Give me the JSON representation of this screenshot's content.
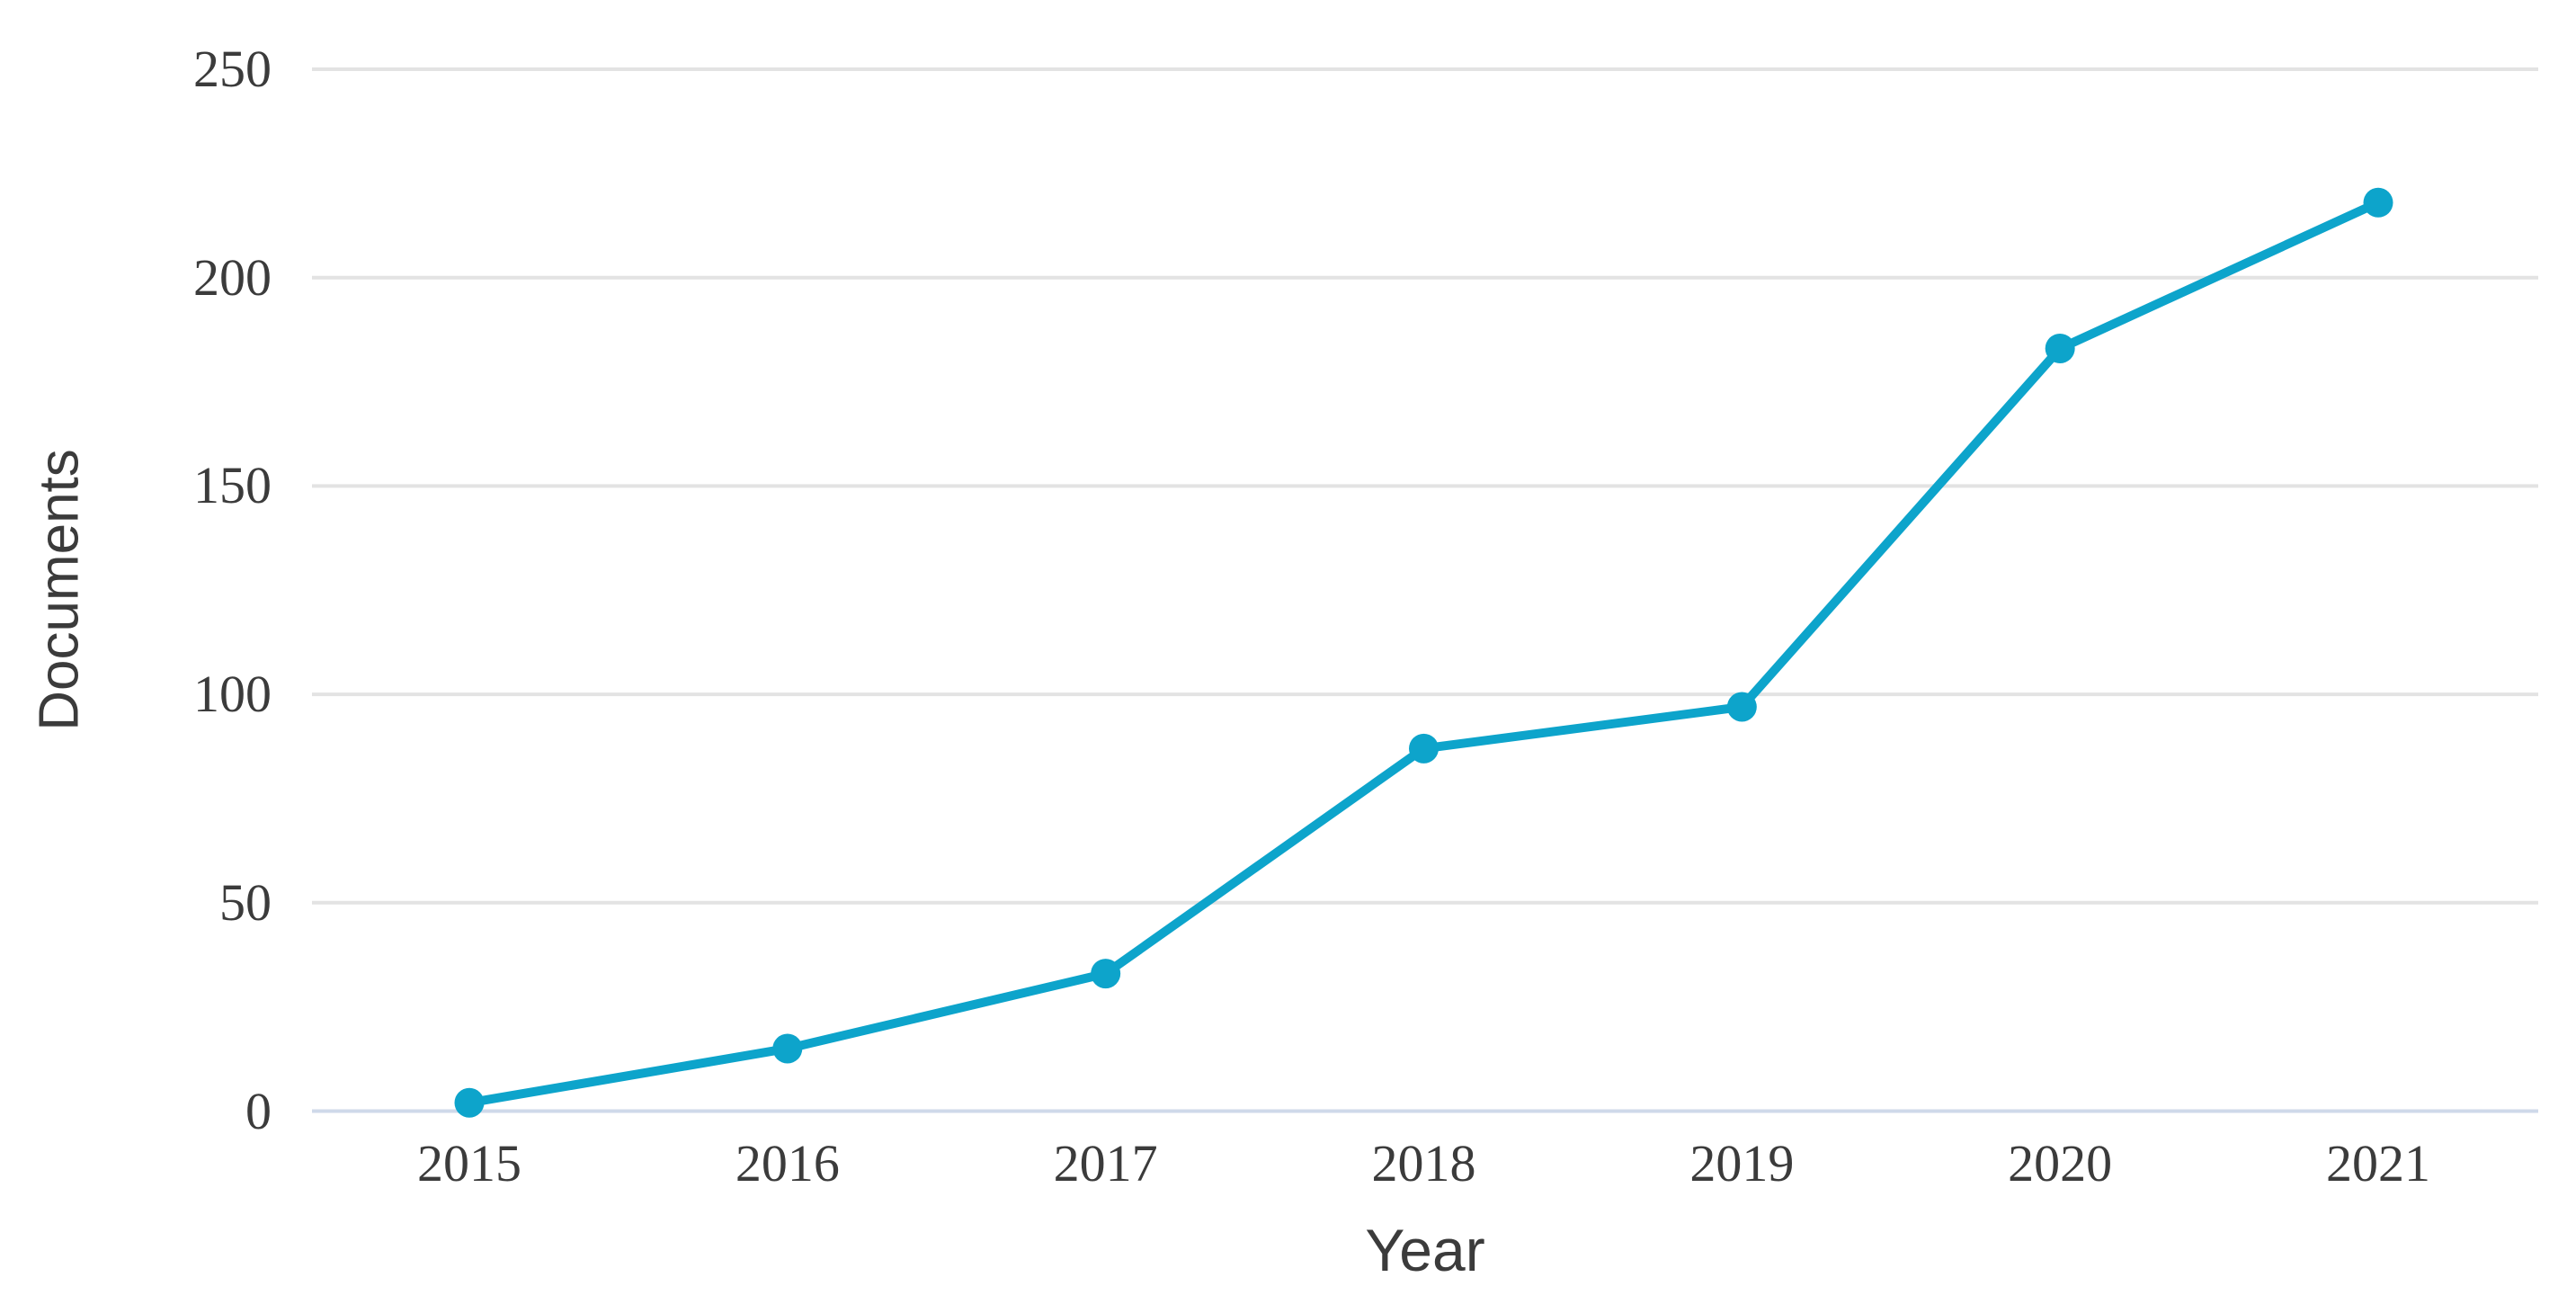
{
  "chart_data": {
    "type": "line",
    "title": "",
    "xlabel": "Year",
    "ylabel": "Documents",
    "categories": [
      "2015",
      "2016",
      "2017",
      "2018",
      "2019",
      "2020",
      "2021"
    ],
    "series": [
      {
        "name": "Documents",
        "values": [
          2,
          15,
          33,
          87,
          97,
          183,
          218
        ]
      }
    ],
    "y_ticks": [
      0,
      50,
      100,
      150,
      200,
      250
    ],
    "ylim": [
      0,
      250
    ],
    "grid": "horizontal",
    "legend": "none",
    "marker": "circle",
    "colors": {
      "line": "#0da4cb",
      "marker": "#0da4cb",
      "gridline": "#e3e3e3",
      "zero_axis": "#cfd9ea",
      "text": "#3b3b3b"
    }
  }
}
